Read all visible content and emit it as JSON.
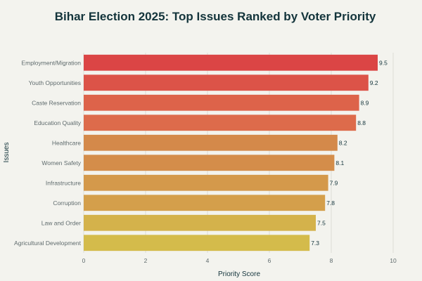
{
  "chart_data": {
    "type": "bar",
    "orientation": "horizontal",
    "title": "Bihar Election 2025: Top Issues Ranked by Voter Priority",
    "xlabel": "Priority Score",
    "ylabel": "Issues",
    "xlim": [
      0,
      10
    ],
    "xticks": [
      "0",
      "2",
      "4",
      "6",
      "8",
      "10"
    ],
    "grid": "vertical",
    "categories": [
      "Employment/Migration",
      "Youth Opportunities",
      "Caste Reservation",
      "Education Quality",
      "Healthcare",
      "Women Safety",
      "Infrastructure",
      "Corruption",
      "Law and Order",
      "Agricultural Development"
    ],
    "values": [
      9.5,
      9.2,
      8.9,
      8.8,
      8.2,
      8.1,
      7.9,
      7.8,
      7.5,
      7.3
    ],
    "value_labels": [
      "9.5",
      "9.2",
      "8.9",
      "8.8",
      "8.2",
      "8.1",
      "7.9",
      "7.8",
      "7.5",
      "7.3"
    ],
    "colors": [
      "#db4545",
      "#dc5348",
      "#dd634a",
      "#dd6b4b",
      "#d4894a",
      "#d48d4a",
      "#d4994b",
      "#d49f4b",
      "#d4b24b",
      "#d4bb4b"
    ],
    "background": "#f3f3ee"
  }
}
